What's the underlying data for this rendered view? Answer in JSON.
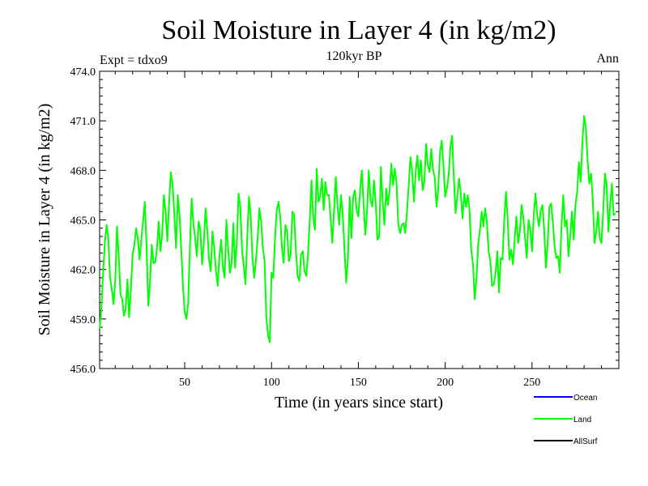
{
  "chart_data": {
    "type": "line",
    "title": "Soil Moisture in Layer 4 (in kg/m2)",
    "subtitle": "120kyr BP",
    "left_note": "Expt = tdxo9",
    "right_note": "Ann",
    "xlabel": "Time (in years since start)",
    "ylabel": "Soil Moisture in Layer 4 (in kg/m2)",
    "xlim": [
      1,
      300
    ],
    "ylim": [
      456.0,
      474.0
    ],
    "x_ticks": [
      50,
      100,
      150,
      200,
      250
    ],
    "x_tick_labels": [
      "50",
      "100",
      "150",
      "200",
      "250"
    ],
    "y_ticks": [
      456.0,
      459.0,
      462.0,
      465.0,
      468.0,
      471.0,
      474.0
    ],
    "y_tick_labels": [
      "456.0",
      "459.0",
      "462.0",
      "465.0",
      "468.0",
      "471.0",
      "474.0"
    ],
    "legend": [
      {
        "name": "Ocean",
        "color": "#0000ff"
      },
      {
        "name": "Land",
        "color": "#00ff00"
      },
      {
        "name": "AllSurf",
        "color": "#000000"
      }
    ],
    "series": [
      {
        "name": "Land",
        "color": "#00ff00",
        "x_start": 1,
        "x_step": 1,
        "values": [
          458.4,
          459.6,
          461.8,
          463.6,
          464.7,
          463.9,
          461.5,
          460.8,
          459.9,
          461.3,
          464.6,
          462.8,
          460.5,
          460.2,
          459.2,
          459.6,
          461.4,
          459.1,
          460.8,
          462.9,
          463.5,
          464.5,
          463.9,
          462.6,
          463.8,
          464.9,
          466.1,
          463.5,
          459.8,
          461.2,
          463.5,
          462.4,
          462.4,
          463.3,
          464.9,
          463.1,
          464.1,
          466.5,
          465.5,
          463.7,
          466.0,
          467.9,
          467.1,
          465.4,
          463.3,
          466.5,
          465.3,
          463.2,
          461.0,
          459.4,
          459.0,
          460.0,
          463.4,
          466.3,
          464.8,
          463.9,
          462.8,
          464.9,
          464.4,
          462.3,
          463.6,
          465.7,
          464.4,
          462.6,
          461.9,
          464.3,
          463.3,
          461.9,
          461.0,
          462.8,
          463.8,
          462.1,
          461.5,
          465.0,
          463.3,
          461.8,
          462.4,
          464.8,
          462.1,
          463.6,
          466.6,
          465.8,
          463.2,
          462.2,
          461.1,
          463.9,
          466.4,
          465.2,
          462.7,
          461.5,
          462.5,
          463.9,
          465.7,
          464.9,
          463.3,
          462.5,
          459.1,
          458.0,
          457.6,
          461.8,
          461.5,
          463.9,
          465.6,
          466.1,
          465.2,
          463.3,
          462.4,
          464.7,
          464.3,
          462.5,
          462.9,
          465.5,
          465.3,
          463.2,
          461.6,
          461.3,
          462.9,
          463.1,
          461.9,
          461.6,
          462.9,
          465.0,
          467.4,
          465.1,
          464.4,
          468.1,
          466.1,
          466.4,
          467.5,
          465.6,
          467.3,
          466.5,
          466.5,
          465.1,
          463.6,
          465.6,
          467.6,
          465.8,
          464.7,
          466.5,
          465.3,
          463.2,
          461.2,
          462.7,
          466.4,
          463.9,
          466.4,
          466.8,
          465.6,
          465.2,
          466.8,
          468.0,
          466.0,
          464.1,
          465.5,
          468.0,
          466.2,
          465.8,
          467.4,
          466.0,
          463.8,
          464.0,
          468.2,
          466.1,
          464.7,
          466.9,
          465.9,
          466.8,
          468.4,
          467.1,
          468.1,
          467.2,
          464.7,
          464.2,
          464.7,
          464.8,
          464.2,
          465.5,
          467.1,
          468.8,
          467.9,
          466.1,
          467.9,
          468.9,
          467.4,
          468.6,
          466.8,
          467.3,
          469.6,
          468.3,
          467.9,
          469.3,
          468.0,
          467.6,
          465.8,
          466.9,
          469.1,
          469.8,
          468.3,
          466.4,
          466.9,
          467.7,
          469.4,
          470.1,
          467.5,
          465.4,
          466.5,
          467.5,
          466.6,
          465.1,
          466.6,
          465.8,
          466.5,
          465.6,
          463.2,
          462.3,
          460.2,
          461.4,
          463.5,
          464.4,
          465.5,
          464.6,
          465.7,
          464.9,
          463.1,
          462.5,
          461.0,
          461.1,
          461.8,
          463.1,
          460.6,
          462.7,
          462.6,
          465.0,
          466.7,
          465.0,
          462.6,
          463.2,
          462.3,
          463.8,
          465.2,
          463.6,
          464.3,
          465.9,
          465.1,
          463.9,
          462.7,
          465.0,
          464.4,
          463.1,
          465.3,
          466.6,
          465.3,
          464.6,
          465.6,
          465.9,
          464.4,
          462.1,
          463.6,
          465.8,
          466.0,
          464.9,
          463.4,
          462.7,
          462.8,
          461.8,
          464.7,
          466.5,
          464.6,
          465.0,
          462.8,
          464.0,
          465.5,
          463.8,
          465.9,
          466.7,
          468.5,
          467.3,
          469.7,
          471.3,
          470.6,
          468.6,
          467.2,
          467.8,
          466.2,
          463.6,
          464.3,
          465.5,
          463.9,
          463.6,
          465.6,
          467.8,
          467.1,
          464.3,
          465.9,
          467.2,
          465.3,
          465.4
        ]
      }
    ]
  }
}
